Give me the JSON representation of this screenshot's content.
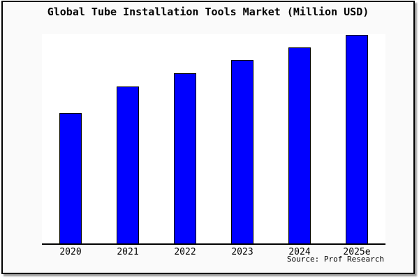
{
  "window": {
    "background": "#ffffff",
    "frame_background": "#fafafa",
    "frame_border_color": "#000000",
    "shadow_color": "#999999"
  },
  "chart_data": {
    "type": "bar",
    "title": "Global Tube Installation Tools Market (Million USD)",
    "categories": [
      "2020",
      "2021",
      "2022",
      "2023",
      "2024",
      "2025e"
    ],
    "values": [
      62.5,
      75,
      81.3,
      87.7,
      93.6,
      99.7
    ],
    "xlabel": "",
    "ylabel": "",
    "ylim": [
      0,
      100
    ],
    "grid": false,
    "legend": false,
    "y_axis_labels_visible": false,
    "bar_color": "#0000ff",
    "bar_border_color": "#000000",
    "plot_background": "#ffffff",
    "axis_color": "#000000"
  },
  "footer": {
    "source_label": "Source: Prof Research"
  }
}
